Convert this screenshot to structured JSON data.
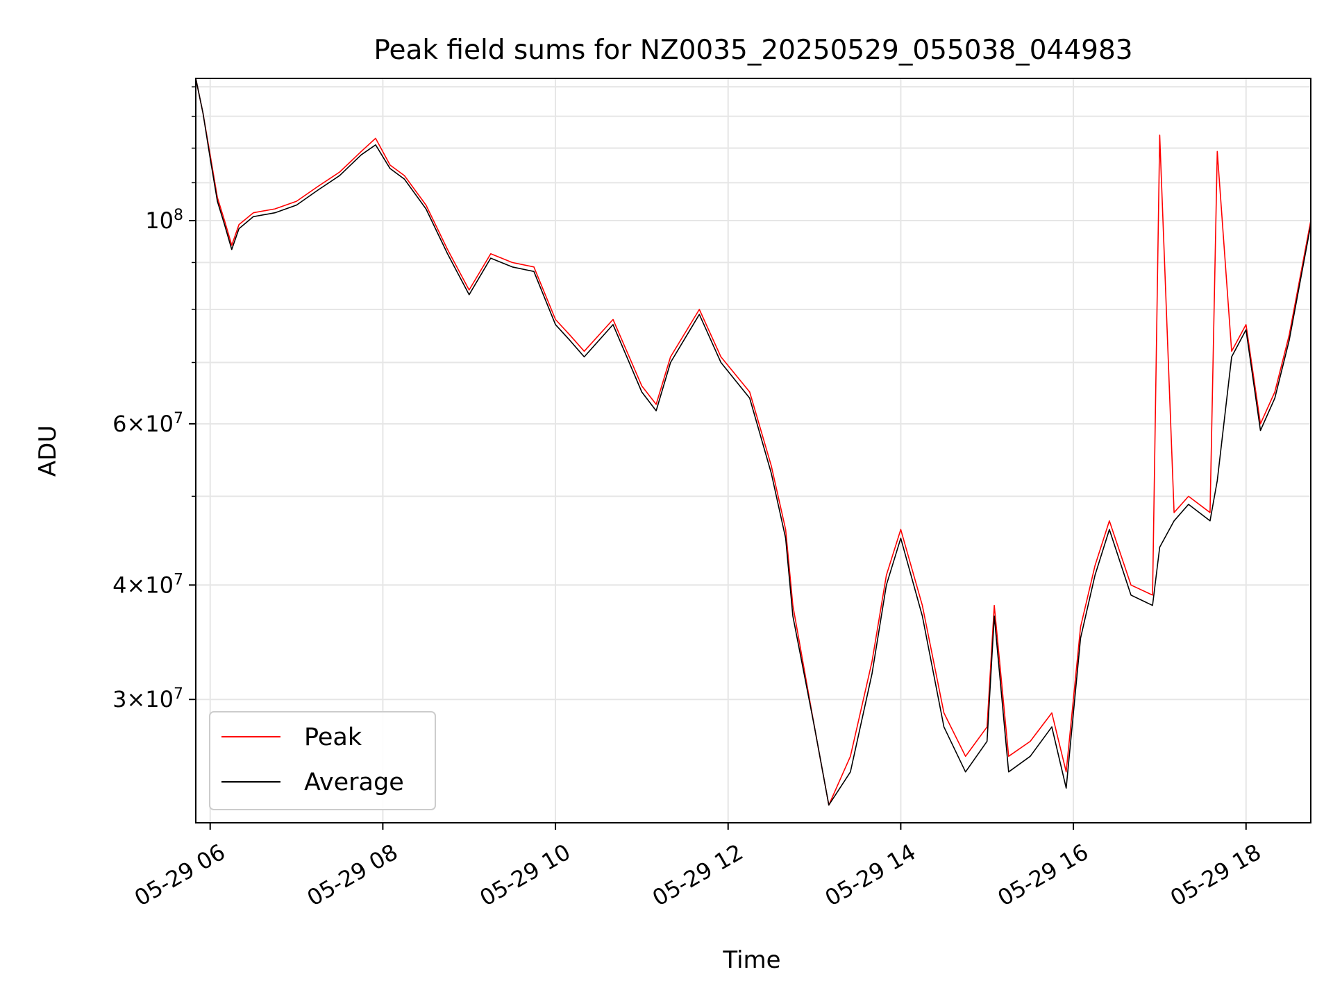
{
  "chart_data": {
    "type": "line",
    "title": "Peak field sums for NZ0035_20250529_055038_044983",
    "xlabel": "Time",
    "ylabel": "ADU",
    "y_scale": "log",
    "ylim": [
      22000000,
      143000000
    ],
    "xlim": [
      "05-29 05:50",
      "05-29 18:45"
    ],
    "grid": true,
    "legend_position": "lower-left",
    "colors": {
      "Peak": "#ff0000",
      "Average": "#000000",
      "grid": "#e6e6e6"
    },
    "x_ticks": [
      "05-29 06",
      "05-29 08",
      "05-29 10",
      "05-29 12",
      "05-29 14",
      "05-29 16",
      "05-29 18"
    ],
    "y_ticks": [
      "10^8",
      "6×10^7",
      "4×10^7",
      "3×10^7"
    ],
    "y_tick_values": [
      100000000,
      60000000,
      40000000,
      30000000
    ],
    "x_tick_values": [
      "05-29 06:00",
      "05-29 08:00",
      "05-29 10:00",
      "05-29 12:00",
      "05-29 14:00",
      "05-29 16:00",
      "05-29 18:00"
    ],
    "x": [
      "05-29 05:50",
      "05-29 05:55",
      "05-29 06:00",
      "05-29 06:05",
      "05-29 06:10",
      "05-29 06:15",
      "05-29 06:20",
      "05-29 06:30",
      "05-29 06:45",
      "05-29 07:00",
      "05-29 07:15",
      "05-29 07:30",
      "05-29 07:45",
      "05-29 07:55",
      "05-29 08:05",
      "05-29 08:15",
      "05-29 08:30",
      "05-29 08:45",
      "05-29 09:00",
      "05-29 09:15",
      "05-29 09:30",
      "05-29 09:45",
      "05-29 10:00",
      "05-29 10:10",
      "05-29 10:20",
      "05-29 10:40",
      "05-29 11:00",
      "05-29 11:10",
      "05-29 11:20",
      "05-29 11:40",
      "05-29 11:55",
      "05-29 12:15",
      "05-29 12:30",
      "05-29 12:40",
      "05-29 12:45",
      "05-29 13:00",
      "05-29 13:10",
      "05-29 13:25",
      "05-29 13:40",
      "05-29 13:50",
      "05-29 14:00",
      "05-29 14:15",
      "05-29 14:30",
      "05-29 14:45",
      "05-29 15:00",
      "05-29 15:05",
      "05-29 15:15",
      "05-29 15:30",
      "05-29 15:45",
      "05-29 15:55",
      "05-29 16:05",
      "05-29 16:15",
      "05-29 16:25",
      "05-29 16:40",
      "05-29 16:55",
      "05-29 17:00",
      "05-29 17:10",
      "05-29 17:20",
      "05-29 17:35",
      "05-29 17:40",
      "05-29 17:50",
      "05-29 18:00",
      "05-29 18:10",
      "05-29 18:20",
      "05-29 18:30",
      "05-29 18:45"
    ],
    "series": [
      {
        "name": "Peak",
        "values": [
          143000000,
          131000000,
          118000000,
          106000000,
          100000000,
          94000000,
          99000000,
          102000000,
          103000000,
          105000000,
          109000000,
          113000000,
          119000000,
          123000000,
          115000000,
          112000000,
          104000000,
          93000000,
          84000000,
          92000000,
          90000000,
          89000000,
          78000000,
          75000000,
          72000000,
          78000000,
          66000000,
          63000000,
          71000000,
          80000000,
          71000000,
          65000000,
          54000000,
          46000000,
          38000000,
          28000000,
          23000000,
          26000000,
          33000000,
          41000000,
          46000000,
          38000000,
          29000000,
          26000000,
          28000000,
          38000000,
          26000000,
          27000000,
          29000000,
          25000000,
          36000000,
          42000000,
          47000000,
          40000000,
          39000000,
          124000000,
          48000000,
          50000000,
          48000000,
          119000000,
          72000000,
          77000000,
          60000000,
          65000000,
          75000000,
          100000000
        ]
      },
      {
        "name": "Average",
        "values": [
          143000000,
          131000000,
          117000000,
          105000000,
          99000000,
          93000000,
          98000000,
          101000000,
          102000000,
          104000000,
          108000000,
          112000000,
          118000000,
          121000000,
          114000000,
          111000000,
          103000000,
          92000000,
          83000000,
          91000000,
          89000000,
          88000000,
          77000000,
          74000000,
          71000000,
          77000000,
          65000000,
          62000000,
          70000000,
          79000000,
          70000000,
          64000000,
          53000000,
          45000000,
          37000000,
          28000000,
          23000000,
          25000000,
          32000000,
          40000000,
          45000000,
          37000000,
          28000000,
          25000000,
          27000000,
          37000000,
          25000000,
          26000000,
          28000000,
          24000000,
          35000000,
          41000000,
          46000000,
          39000000,
          38000000,
          44000000,
          47000000,
          49000000,
          47000000,
          52000000,
          71000000,
          76000000,
          59000000,
          64000000,
          74000000,
          99000000
        ]
      }
    ]
  }
}
